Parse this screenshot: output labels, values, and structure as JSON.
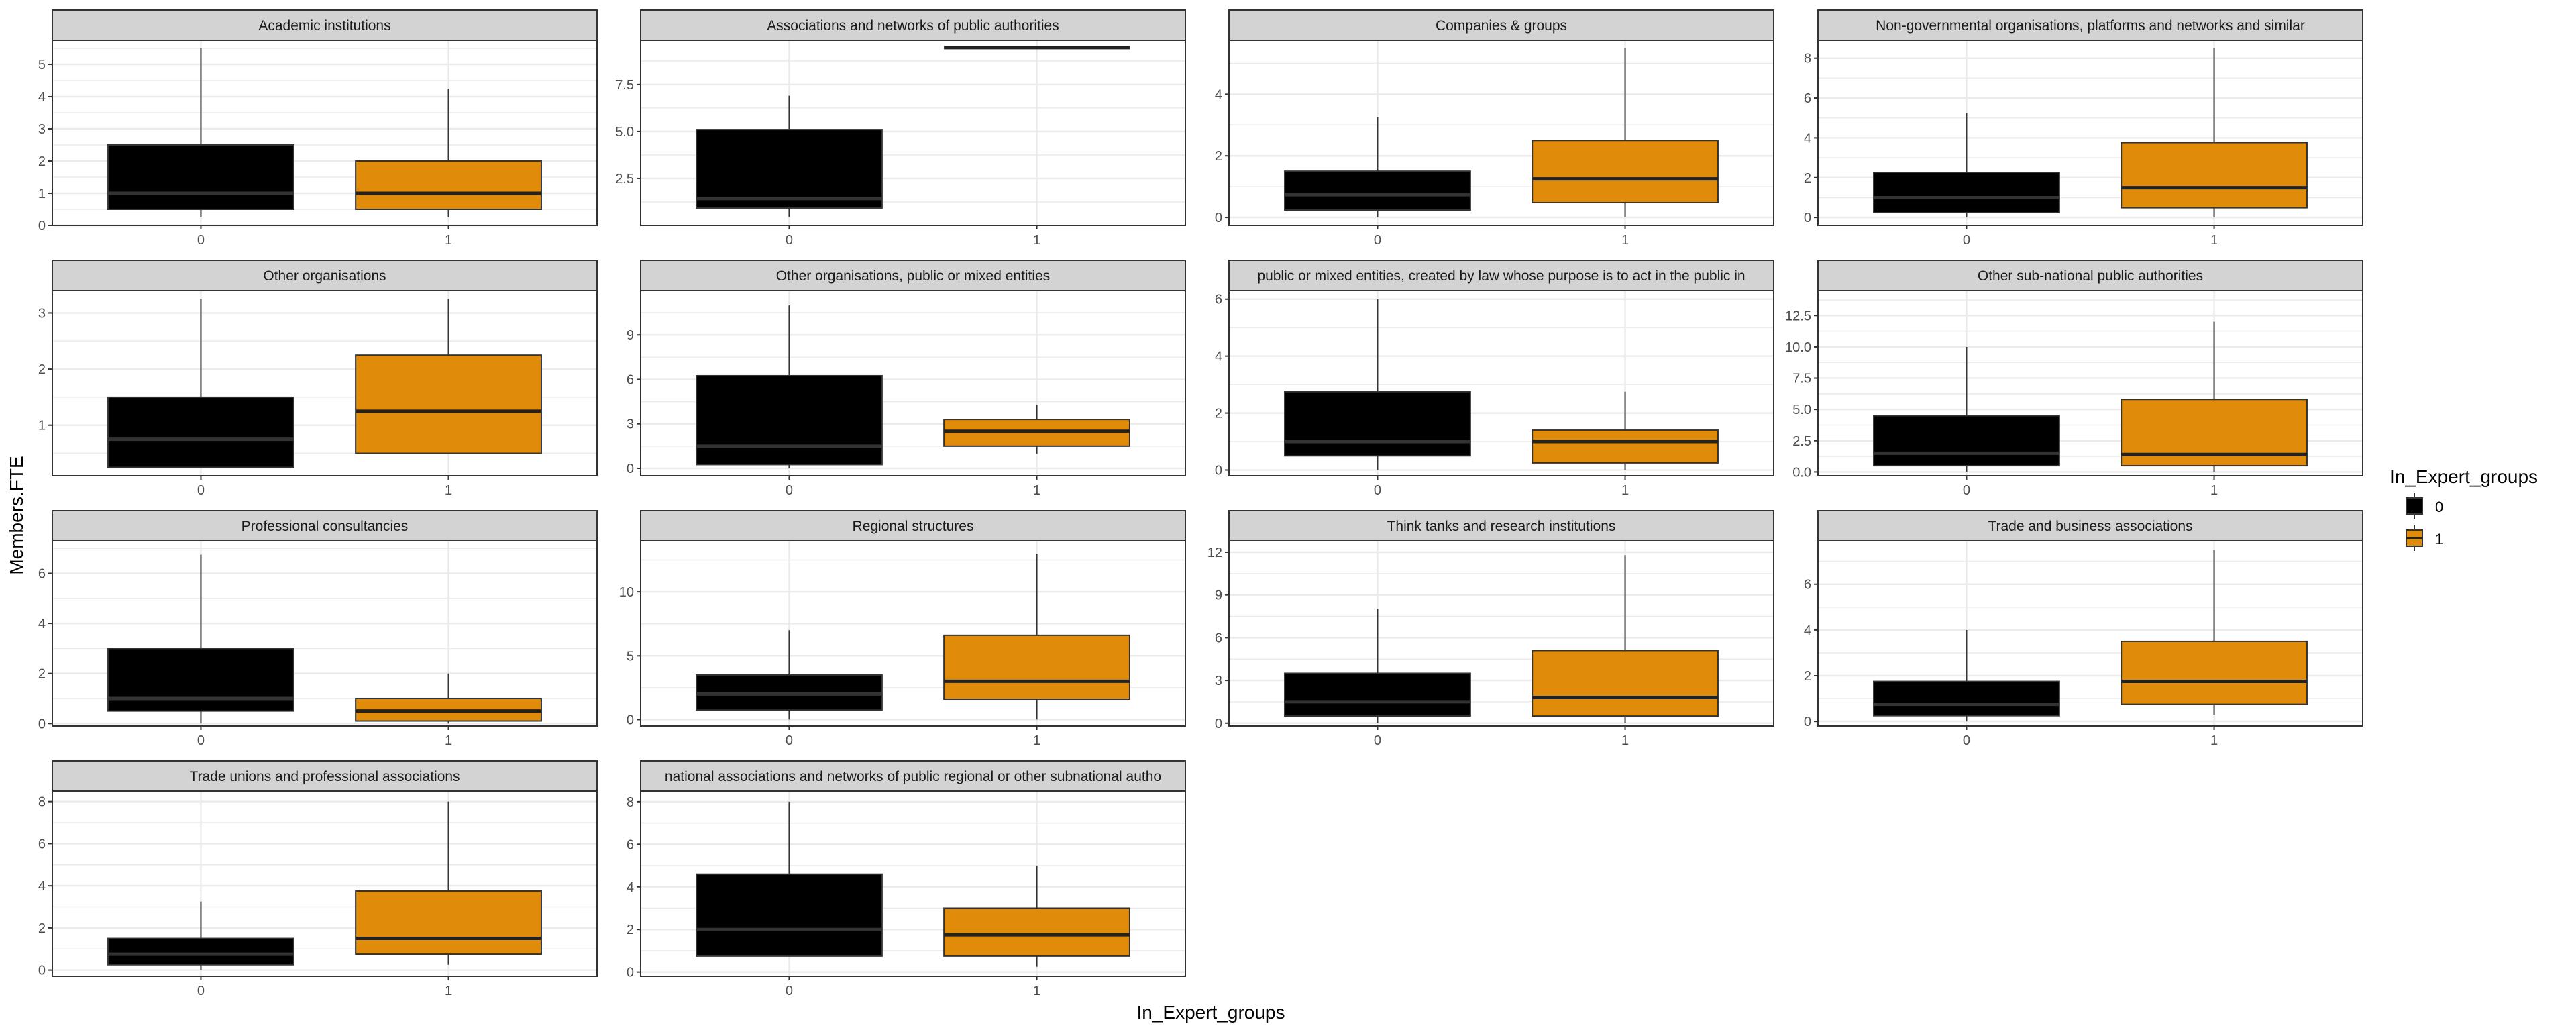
{
  "chart_data": {
    "type": "boxplot",
    "xlabel": "In_Expert_groups",
    "ylabel": "Members.FTE",
    "categories": [
      "0",
      "1"
    ],
    "legend": {
      "title": "In_Expert_groups",
      "entries": [
        "0",
        "1"
      ],
      "placement": "right"
    },
    "colors": {
      "0": "#000000",
      "1": "#E08B0A",
      "median_on_dark": "#333333",
      "median": "#222222",
      "strip": "#D3D3D3",
      "grid": "#EBEBEB"
    },
    "panels": [
      {
        "title": "Academic institutions",
        "ylim": [
          0,
          5.75
        ],
        "ticks": [
          0,
          1,
          2,
          3,
          4,
          5
        ],
        "tick_labels": [
          "0",
          "1",
          "2",
          "3",
          "4",
          "5"
        ],
        "boxes": [
          {
            "min": 0.25,
            "q1": 0.5,
            "median": 1,
            "q3": 2.5,
            "max": 5.5
          },
          {
            "min": 0.25,
            "q1": 0.5,
            "median": 1,
            "q3": 2,
            "max": 4.25
          }
        ]
      },
      {
        "title": "Associations and networks of public authorities",
        "ylim": [
          0,
          9.85
        ],
        "ticks": [
          2.5,
          5,
          7.5
        ],
        "tick_labels": [
          "2.5",
          "5.0",
          "7.5"
        ],
        "boxes": [
          {
            "min": 0.45,
            "q1": 0.93,
            "median": 1.43,
            "q3": 5.1,
            "max": 6.9
          },
          {
            "min": 9.46,
            "q1": 9.46,
            "median": 9.46,
            "q3": 9.46,
            "max": 9.46
          }
        ]
      },
      {
        "title": "Companies & groups",
        "ylim": [
          -0.26,
          5.75
        ],
        "ticks": [
          0,
          2,
          4
        ],
        "tick_labels": [
          "0",
          "2",
          "4"
        ],
        "boxes": [
          {
            "min": 0,
            "q1": 0.24,
            "median": 0.74,
            "q3": 1.5,
            "max": 3.25
          },
          {
            "min": 0,
            "q1": 0.48,
            "median": 1.25,
            "q3": 2.5,
            "max": 5.5
          }
        ]
      },
      {
        "title": "Non-governmental organisations, platforms and networks and similar",
        "ylim": [
          -0.4,
          8.9
        ],
        "ticks": [
          0,
          2,
          4,
          6,
          8
        ],
        "tick_labels": [
          "0",
          "2",
          "4",
          "6",
          "8"
        ],
        "boxes": [
          {
            "min": 0,
            "q1": 0.24,
            "median": 1,
            "q3": 2.26,
            "max": 5.24
          },
          {
            "min": 0,
            "q1": 0.49,
            "median": 1.5,
            "q3": 3.76,
            "max": 8.5
          }
        ]
      },
      {
        "title": "Other organisations",
        "ylim": [
          0.1,
          3.4
        ],
        "ticks": [
          1,
          2,
          3
        ],
        "tick_labels": [
          "1",
          "2",
          "3"
        ],
        "boxes": [
          {
            "min": 0.25,
            "q1": 0.25,
            "median": 0.75,
            "q3": 1.5,
            "max": 3.25
          },
          {
            "min": 0.5,
            "q1": 0.5,
            "median": 1.25,
            "q3": 2.25,
            "max": 3.25
          }
        ]
      },
      {
        "title": "Other organisations, public or mixed entities",
        "ylim": [
          -0.5,
          12
        ],
        "ticks": [
          0,
          3,
          6,
          9
        ],
        "tick_labels": [
          "0",
          "3",
          "6",
          "9"
        ],
        "boxes": [
          {
            "min": 0,
            "q1": 0.25,
            "median": 1.5,
            "q3": 6.25,
            "max": 11
          },
          {
            "min": 1,
            "q1": 1.5,
            "median": 2.5,
            "q3": 3.3,
            "max": 4.3
          }
        ]
      },
      {
        "title": "public or mixed entities, created by law whose purpose is to act in the public in",
        "ylim": [
          -0.2,
          6.3
        ],
        "ticks": [
          0,
          2,
          4,
          6
        ],
        "tick_labels": [
          "0",
          "2",
          "4",
          "6"
        ],
        "boxes": [
          {
            "min": 0,
            "q1": 0.5,
            "median": 1,
            "q3": 2.75,
            "max": 6
          },
          {
            "min": 0,
            "q1": 0.25,
            "median": 1,
            "q3": 1.4,
            "max": 2.75
          }
        ]
      },
      {
        "title": "Other sub-national public authorities",
        "ylim": [
          -0.3,
          14.5
        ],
        "ticks": [
          0,
          2.5,
          5,
          7.5,
          10,
          12.5
        ],
        "tick_labels": [
          "0.0",
          "2.5",
          "5.0",
          "7.5",
          "10.0",
          "12.5"
        ],
        "boxes": [
          {
            "min": 0,
            "q1": 0.5,
            "median": 1.5,
            "q3": 4.5,
            "max": 10
          },
          {
            "min": 0,
            "q1": 0.5,
            "median": 1.4,
            "q3": 5.8,
            "max": 12
          }
        ]
      },
      {
        "title": "Professional consultancies",
        "ylim": [
          -0.1,
          7.3
        ],
        "ticks": [
          0,
          2,
          4,
          6
        ],
        "tick_labels": [
          "0",
          "2",
          "4",
          "6"
        ],
        "boxes": [
          {
            "min": 0,
            "q1": 0.5,
            "median": 1,
            "q3": 3,
            "max": 6.75
          },
          {
            "min": 0,
            "q1": 0.1,
            "median": 0.5,
            "q3": 1,
            "max": 2
          }
        ]
      },
      {
        "title": "Regional structures",
        "ylim": [
          -0.5,
          14
        ],
        "ticks": [
          0,
          5,
          10
        ],
        "tick_labels": [
          "0",
          "5",
          "10"
        ],
        "boxes": [
          {
            "min": 0,
            "q1": 0.75,
            "median": 2,
            "q3": 3.5,
            "max": 7
          },
          {
            "min": 0,
            "q1": 1.6,
            "median": 3,
            "q3": 6.6,
            "max": 13
          }
        ]
      },
      {
        "title": "Think tanks and research institutions",
        "ylim": [
          -0.2,
          12.8
        ],
        "ticks": [
          0,
          3,
          6,
          9,
          12
        ],
        "tick_labels": [
          "0",
          "3",
          "6",
          "9",
          "12"
        ],
        "boxes": [
          {
            "min": 0,
            "q1": 0.5,
            "median": 1.5,
            "q3": 3.5,
            "max": 8
          },
          {
            "min": 0,
            "q1": 0.5,
            "median": 1.8,
            "q3": 5.1,
            "max": 11.8
          }
        ]
      },
      {
        "title": "Trade and business associations",
        "ylim": [
          -0.2,
          7.9
        ],
        "ticks": [
          0,
          2,
          4,
          6
        ],
        "tick_labels": [
          "0",
          "2",
          "4",
          "6"
        ],
        "boxes": [
          {
            "min": 0,
            "q1": 0.25,
            "median": 0.75,
            "q3": 1.75,
            "max": 4
          },
          {
            "min": 0.3,
            "q1": 0.75,
            "median": 1.75,
            "q3": 3.5,
            "max": 7.5
          }
        ]
      },
      {
        "title": "Trade unions and professional associations",
        "ylim": [
          -0.3,
          8.5
        ],
        "ticks": [
          0,
          2,
          4,
          6,
          8
        ],
        "tick_labels": [
          "0",
          "2",
          "4",
          "6",
          "8"
        ],
        "boxes": [
          {
            "min": 0,
            "q1": 0.25,
            "median": 0.75,
            "q3": 1.5,
            "max": 3.25
          },
          {
            "min": 0.25,
            "q1": 0.75,
            "median": 1.5,
            "q3": 3.75,
            "max": 8
          }
        ]
      },
      {
        "title": "national associations and networks of public regional or other subnational autho",
        "ylim": [
          -0.2,
          8.5
        ],
        "ticks": [
          0,
          2,
          4,
          6,
          8
        ],
        "tick_labels": [
          "0",
          "2",
          "4",
          "6",
          "8"
        ],
        "boxes": [
          {
            "min": 0.75,
            "q1": 0.75,
            "median": 2,
            "q3": 4.6,
            "max": 8
          },
          {
            "min": 0.25,
            "q1": 0.75,
            "median": 1.75,
            "q3": 3,
            "max": 5
          }
        ]
      }
    ]
  }
}
